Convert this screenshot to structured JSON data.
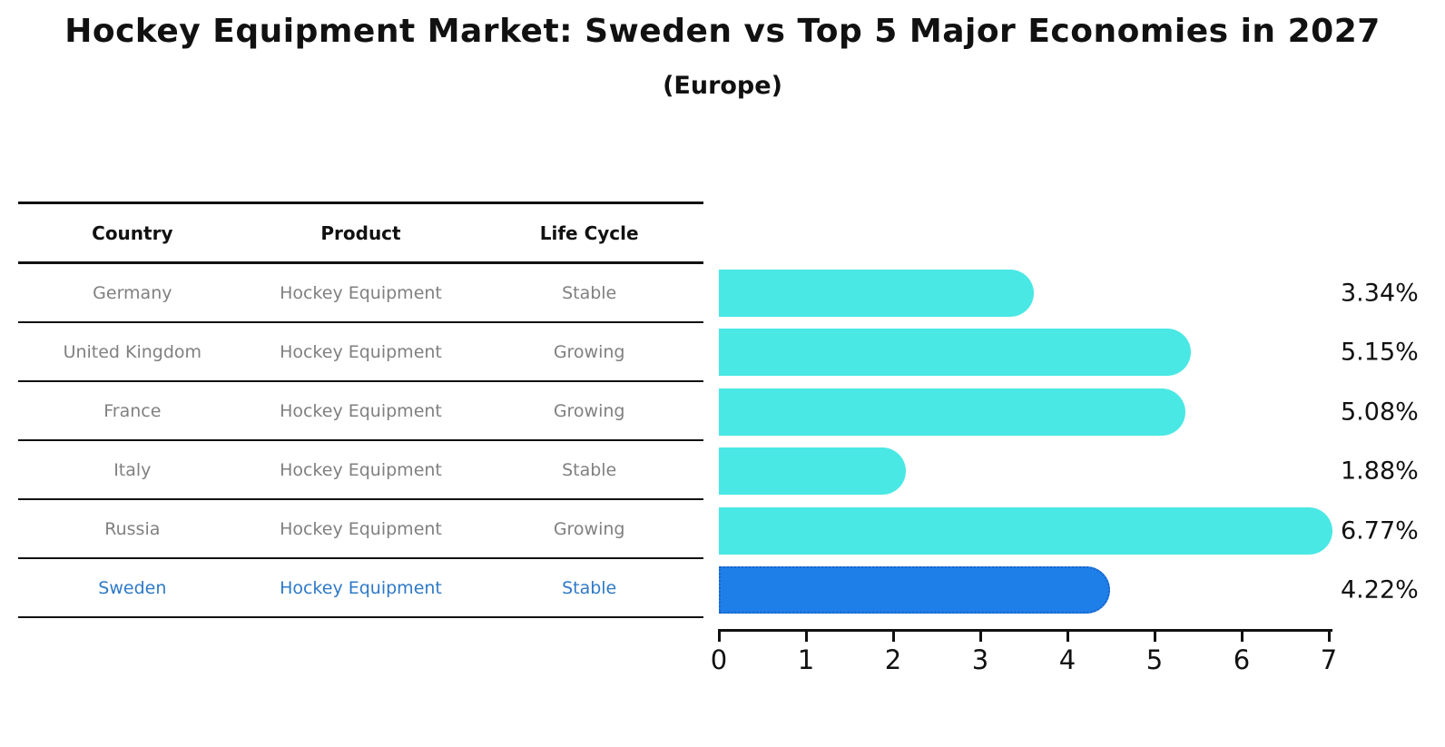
{
  "title": "Hockey Equipment Market: Sweden vs Top 5 Major Economies in 2027",
  "subtitle": "(Europe)",
  "table": {
    "headers": [
      "Country",
      "Product",
      "Life Cycle"
    ],
    "rows": [
      {
        "country": "Germany",
        "product": "Hockey Equipment",
        "life_cycle": "Stable",
        "highlight": false
      },
      {
        "country": "United Kingdom",
        "product": "Hockey Equipment",
        "life_cycle": "Growing",
        "highlight": false
      },
      {
        "country": "France",
        "product": "Hockey Equipment",
        "life_cycle": "Growing",
        "highlight": false
      },
      {
        "country": "Italy",
        "product": "Hockey Equipment",
        "life_cycle": "Stable",
        "highlight": false
      },
      {
        "country": "Russia",
        "product": "Hockey Equipment",
        "life_cycle": "Growing",
        "highlight": false
      },
      {
        "country": "Sweden",
        "product": "Hockey Equipment",
        "life_cycle": "Stable",
        "highlight": true
      }
    ]
  },
  "chart_data": {
    "type": "bar",
    "orientation": "horizontal",
    "title": "Hockey Equipment Market: Sweden vs Top 5 Major Economies in 2027 (Europe)",
    "categories": [
      "Germany",
      "United Kingdom",
      "France",
      "Italy",
      "Russia",
      "Sweden"
    ],
    "values": [
      3.34,
      5.15,
      5.08,
      1.88,
      6.77,
      4.22
    ],
    "value_labels": [
      "3.34%",
      "5.15%",
      "5.08%",
      "1.88%",
      "6.77%",
      "4.22%"
    ],
    "xlim": [
      0,
      7
    ],
    "x_ticks": [
      "0",
      "1",
      "2",
      "3",
      "4",
      "5",
      "6",
      "7"
    ],
    "grid": false,
    "legend": false,
    "bar_color": "#49E8E4",
    "highlight_index": 5,
    "highlight_category": "Sweden",
    "highlight_bar_color": "#1F7FE8",
    "highlight_border_color": "#1C63C8"
  },
  "colors": {
    "title": "#111111",
    "table_header_text": "#111111",
    "table_row_text": "#808080",
    "highlight_text": "#2E79C7",
    "axis": "#111111"
  }
}
